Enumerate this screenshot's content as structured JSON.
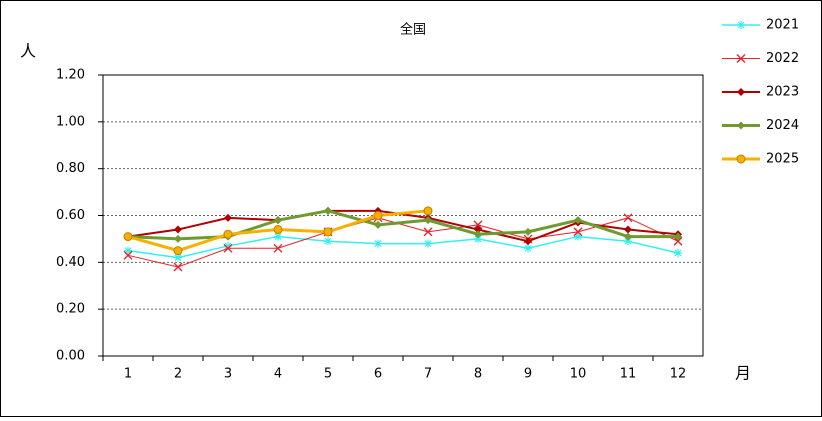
{
  "chart_data": {
    "type": "line",
    "title": "全国",
    "y_label": "人",
    "x_label": "月",
    "categories": [
      "1",
      "2",
      "3",
      "4",
      "5",
      "6",
      "7",
      "8",
      "9",
      "10",
      "11",
      "12"
    ],
    "series": [
      {
        "name": "2021",
        "color": "#33f0f0",
        "marker": "star",
        "values": [
          0.45,
          0.42,
          0.47,
          0.51,
          0.49,
          0.48,
          0.48,
          0.5,
          0.46,
          0.51,
          0.49,
          0.44
        ]
      },
      {
        "name": "2022",
        "color": "#e8202a",
        "marker": "x",
        "values": [
          0.43,
          0.38,
          0.46,
          0.46,
          0.53,
          0.59,
          0.53,
          0.56,
          0.5,
          0.53,
          0.59,
          0.49
        ]
      },
      {
        "name": "2023",
        "color": "#b00000",
        "marker": "diamond",
        "values": [
          0.51,
          0.54,
          0.59,
          0.58,
          0.62,
          0.62,
          0.59,
          0.54,
          0.49,
          0.57,
          0.54,
          0.52
        ]
      },
      {
        "name": "2024",
        "color": "#6e9a30",
        "marker": "diamond",
        "values": [
          0.51,
          0.5,
          0.51,
          0.58,
          0.62,
          0.56,
          0.58,
          0.52,
          0.53,
          0.58,
          0.51,
          0.51
        ]
      },
      {
        "name": "2025",
        "color": "#f5b000",
        "marker": "circle",
        "values": [
          0.51,
          0.45,
          0.52,
          0.54,
          0.53,
          0.6,
          0.62,
          null,
          null,
          null,
          null,
          null
        ]
      }
    ],
    "ylim": [
      0,
      1.2
    ],
    "yticks": [
      {
        "value": 0,
        "label": "0.00"
      },
      {
        "value": 0.2,
        "label": "0.20"
      },
      {
        "value": 0.4,
        "label": "0.40"
      },
      {
        "value": 0.6,
        "label": "0.60"
      },
      {
        "value": 0.8,
        "label": "0.80"
      },
      {
        "value": 1.0,
        "label": "1.00"
      },
      {
        "value": 1.2,
        "label": "1.20"
      }
    ],
    "grid": true,
    "legend": "right"
  }
}
